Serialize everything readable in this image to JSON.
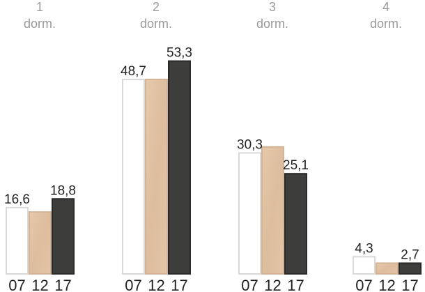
{
  "chart_data": {
    "type": "bar",
    "groups": [
      {
        "number": "1",
        "label": "dorm."
      },
      {
        "number": "2",
        "label": "dorm."
      },
      {
        "number": "3",
        "label": "dorm."
      },
      {
        "number": "4",
        "label": "dorm."
      }
    ],
    "series_ticks": [
      "07",
      "12",
      "17"
    ],
    "series": [
      {
        "values": [
          16.6,
          48.7,
          30.3,
          4.3
        ],
        "labels": [
          "16,6",
          "48,7",
          "30,3",
          "4,3"
        ],
        "fill": "#ffffff",
        "stroke": "#d9d9d9"
      },
      {
        "values": [
          15.5,
          48.7,
          31.8,
          2.7
        ],
        "labels": [
          "",
          "",
          "",
          ""
        ],
        "fill": "#dfc0a2",
        "stroke": "#d2b396"
      },
      {
        "values": [
          18.8,
          53.3,
          25.1,
          2.7
        ],
        "labels": [
          "18,8",
          "53,3",
          "25,1",
          "2,7"
        ],
        "fill": "#3d3d3b",
        "stroke": "#2a2a2a"
      }
    ],
    "ylim": [
      0,
      60
    ],
    "grid": false,
    "legend": "none"
  }
}
